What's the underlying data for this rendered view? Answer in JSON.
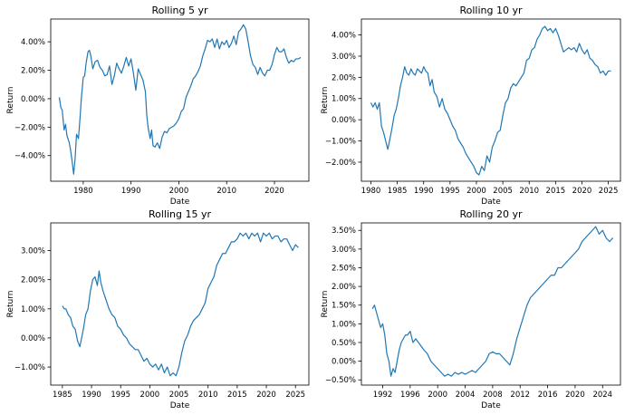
{
  "chart_data": [
    {
      "type": "line",
      "title": "Rolling 5 yr",
      "xlabel": "Date",
      "ylabel": "Return",
      "xlim": [
        1973.2,
        2027.2
      ],
      "ylim": [
        -5.8,
        5.6
      ],
      "xticks": [
        1980,
        1990,
        2000,
        2010,
        2020
      ],
      "yticks": [
        -4,
        -2,
        0,
        2,
        4
      ],
      "ytick_format": "percent_2dp",
      "color": "#1f77b4",
      "series": [
        {
          "x": [
            1975.0,
            1975.3,
            1975.6,
            1976.0,
            1976.3,
            1976.6,
            1977.0,
            1977.3,
            1977.6,
            1978.0,
            1978.3,
            1978.6,
            1979.0,
            1979.3,
            1979.6,
            1980.0,
            1980.3,
            1980.6,
            1981.0,
            1981.3,
            1981.6,
            1982.0,
            1982.5,
            1983.0,
            1983.5,
            1984.0,
            1984.5,
            1985.0,
            1985.5,
            1986.0,
            1986.5,
            1987.0,
            1987.5,
            1988.0,
            1988.5,
            1989.0,
            1989.5,
            1990.0,
            1990.5,
            1991.0,
            1991.5,
            1992.0,
            1992.5,
            1993.0,
            1993.3,
            1993.6,
            1994.0,
            1994.3,
            1994.6,
            1995.0,
            1995.5,
            1996.0,
            1996.5,
            1997.0,
            1997.5,
            1998.0,
            1998.5,
            1999.0,
            1999.5,
            2000.0,
            2000.5,
            2001.0,
            2001.5,
            2002.0,
            2002.5,
            2003.0,
            2003.5,
            2004.0,
            2004.5,
            2005.0,
            2005.5,
            2006.0,
            2006.5,
            2007.0,
            2007.5,
            2008.0,
            2008.5,
            2009.0,
            2009.5,
            2010.0,
            2010.5,
            2011.0,
            2011.5,
            2012.0,
            2012.5,
            2013.0,
            2013.5,
            2014.0,
            2014.5,
            2015.0,
            2015.5,
            2016.0,
            2016.5,
            2017.0,
            2017.5,
            2018.0,
            2018.5,
            2019.0,
            2019.5,
            2020.0,
            2020.5,
            2021.0,
            2021.5,
            2022.0,
            2022.5,
            2023.0,
            2023.5,
            2024.0,
            2024.5,
            2025.0,
            2025.5
          ],
          "y": [
            0.1,
            -0.6,
            -0.8,
            -2.2,
            -1.8,
            -2.6,
            -3.0,
            -3.5,
            -4.2,
            -5.3,
            -4.2,
            -2.5,
            -2.8,
            -1.5,
            0.0,
            1.5,
            1.6,
            2.5,
            3.3,
            3.4,
            3.0,
            2.1,
            2.6,
            2.7,
            2.2,
            2.0,
            1.6,
            1.7,
            2.3,
            1.0,
            1.6,
            2.5,
            2.1,
            1.8,
            2.3,
            2.9,
            2.3,
            2.8,
            1.8,
            0.6,
            2.1,
            1.7,
            1.3,
            0.5,
            -1.2,
            -2.1,
            -2.8,
            -2.2,
            -3.3,
            -3.4,
            -3.1,
            -3.5,
            -2.7,
            -2.3,
            -2.4,
            -2.1,
            -2.0,
            -1.9,
            -1.7,
            -1.4,
            -0.9,
            -0.7,
            0.1,
            0.5,
            0.9,
            1.4,
            1.6,
            1.9,
            2.3,
            3.0,
            3.5,
            4.1,
            4.0,
            4.2,
            3.6,
            4.2,
            3.5,
            4.0,
            3.8,
            4.1,
            3.6,
            3.9,
            4.4,
            3.8,
            4.7,
            4.9,
            5.2,
            4.9,
            4.0,
            3.0,
            2.4,
            2.2,
            1.7,
            2.2,
            1.8,
            1.6,
            2.0,
            2.0,
            2.4,
            3.1,
            3.6,
            3.3,
            3.3,
            3.5,
            2.9,
            2.5,
            2.7,
            2.6,
            2.8,
            2.8,
            2.9
          ]
        }
      ]
    },
    {
      "type": "line",
      "title": "Rolling 10 yr",
      "xlabel": "Date",
      "ylabel": "Return",
      "xlim": [
        1978.2,
        2027.3
      ],
      "ylim": [
        -2.9,
        4.75
      ],
      "xticks": [
        1980,
        1985,
        1990,
        1995,
        2000,
        2005,
        2010,
        2015,
        2020,
        2025
      ],
      "yticks": [
        -2,
        -1,
        0,
        1,
        2,
        3,
        4
      ],
      "ytick_format": "percent_2dp",
      "color": "#1f77b4",
      "series": [
        {
          "x": [
            1980.0,
            1980.4,
            1980.8,
            1981.2,
            1981.6,
            1982.0,
            1982.4,
            1982.8,
            1983.2,
            1983.6,
            1984.0,
            1984.4,
            1984.8,
            1985.2,
            1985.6,
            1986.0,
            1986.4,
            1986.8,
            1987.2,
            1987.6,
            1988.0,
            1988.4,
            1988.8,
            1989.2,
            1989.6,
            1990.0,
            1990.4,
            1990.8,
            1991.2,
            1991.6,
            1992.0,
            1992.5,
            1993.0,
            1993.5,
            1994.0,
            1994.5,
            1995.0,
            1995.5,
            1996.0,
            1996.5,
            1997.0,
            1997.5,
            1998.0,
            1998.5,
            1999.0,
            1999.5,
            2000.0,
            2000.5,
            2001.0,
            2001.5,
            2002.0,
            2002.5,
            2003.0,
            2003.5,
            2004.0,
            2004.5,
            2005.0,
            2005.5,
            2006.0,
            2006.5,
            2007.0,
            2007.5,
            2008.0,
            2008.5,
            2009.0,
            2009.5,
            2010.0,
            2010.5,
            2011.0,
            2011.5,
            2012.0,
            2012.5,
            2013.0,
            2013.5,
            2014.0,
            2014.5,
            2015.0,
            2015.5,
            2016.0,
            2016.5,
            2017.0,
            2017.5,
            2018.0,
            2018.5,
            2019.0,
            2019.5,
            2020.0,
            2020.5,
            2021.0,
            2021.5,
            2022.0,
            2022.5,
            2023.0,
            2023.5,
            2024.0,
            2024.5,
            2025.0,
            2025.5
          ],
          "y": [
            0.8,
            0.6,
            0.8,
            0.5,
            0.8,
            -0.3,
            -0.6,
            -1.0,
            -1.4,
            -0.9,
            -0.4,
            0.2,
            0.5,
            1.0,
            1.6,
            2.0,
            2.5,
            2.2,
            2.1,
            2.4,
            2.2,
            2.1,
            2.4,
            2.3,
            2.2,
            2.5,
            2.3,
            2.2,
            1.6,
            1.9,
            1.3,
            1.1,
            0.6,
            1.0,
            0.5,
            0.3,
            0.0,
            -0.3,
            -0.5,
            -0.9,
            -1.1,
            -1.3,
            -1.6,
            -1.8,
            -2.0,
            -2.2,
            -2.5,
            -2.6,
            -2.2,
            -2.4,
            -1.7,
            -2.0,
            -1.3,
            -1.0,
            -0.6,
            -0.5,
            0.2,
            0.8,
            1.0,
            1.5,
            1.7,
            1.6,
            1.8,
            2.0,
            2.2,
            2.8,
            2.9,
            3.3,
            3.4,
            3.8,
            4.0,
            4.3,
            4.4,
            4.2,
            4.3,
            4.1,
            4.3,
            4.0,
            3.6,
            3.2,
            3.3,
            3.4,
            3.3,
            3.4,
            3.2,
            3.6,
            3.3,
            3.1,
            3.3,
            2.9,
            2.8,
            2.6,
            2.5,
            2.2,
            2.3,
            2.1,
            2.3,
            2.3
          ]
        }
      ]
    },
    {
      "type": "line",
      "title": "Rolling 15 yr",
      "xlabel": "Date",
      "ylabel": "Return",
      "xlim": [
        1983.0,
        2027.3
      ],
      "ylim": [
        -1.62,
        3.95
      ],
      "xticks": [
        1985,
        1990,
        1995,
        2000,
        2005,
        2010,
        2015,
        2020,
        2025
      ],
      "yticks": [
        -1,
        0,
        1,
        2,
        3
      ],
      "ytick_format": "percent_2dp",
      "color": "#1f77b4",
      "series": [
        {
          "x": [
            1985.0,
            1985.3,
            1985.6,
            1986.0,
            1986.4,
            1986.8,
            1987.2,
            1987.6,
            1988.0,
            1988.3,
            1988.6,
            1989.0,
            1989.4,
            1989.8,
            1990.2,
            1990.6,
            1991.0,
            1991.3,
            1991.6,
            1992.0,
            1992.5,
            1993.0,
            1993.5,
            1994.0,
            1994.5,
            1995.0,
            1995.5,
            1996.0,
            1996.5,
            1997.0,
            1997.5,
            1998.0,
            1998.5,
            1999.0,
            1999.5,
            2000.0,
            2000.5,
            2001.0,
            2001.5,
            2002.0,
            2002.5,
            2003.0,
            2003.5,
            2004.0,
            2004.5,
            2005.0,
            2005.5,
            2006.0,
            2006.5,
            2007.0,
            2007.5,
            2008.0,
            2008.5,
            2009.0,
            2009.5,
            2010.0,
            2010.5,
            2011.0,
            2011.5,
            2012.0,
            2012.5,
            2013.0,
            2013.5,
            2014.0,
            2014.5,
            2015.0,
            2015.5,
            2016.0,
            2016.5,
            2017.0,
            2017.5,
            2018.0,
            2018.5,
            2019.0,
            2019.5,
            2020.0,
            2020.5,
            2021.0,
            2021.5,
            2022.0,
            2022.5,
            2023.0,
            2023.5,
            2024.0,
            2024.5,
            2025.0,
            2025.5
          ],
          "y": [
            1.1,
            1.0,
            1.0,
            0.8,
            0.7,
            0.4,
            0.3,
            -0.1,
            -0.3,
            0.0,
            0.3,
            0.8,
            1.0,
            1.6,
            2.0,
            2.1,
            1.8,
            2.3,
            1.9,
            1.6,
            1.3,
            1.0,
            0.8,
            0.7,
            0.4,
            0.3,
            0.1,
            0.0,
            -0.2,
            -0.3,
            -0.4,
            -0.4,
            -0.6,
            -0.8,
            -0.7,
            -0.9,
            -1.0,
            -0.9,
            -1.1,
            -0.9,
            -1.2,
            -1.0,
            -1.3,
            -1.2,
            -1.3,
            -1.0,
            -0.5,
            -0.1,
            0.1,
            0.4,
            0.6,
            0.7,
            0.8,
            1.0,
            1.2,
            1.7,
            1.9,
            2.1,
            2.5,
            2.7,
            2.9,
            2.9,
            3.1,
            3.3,
            3.3,
            3.4,
            3.6,
            3.5,
            3.6,
            3.4,
            3.6,
            3.5,
            3.6,
            3.3,
            3.6,
            3.5,
            3.6,
            3.4,
            3.5,
            3.5,
            3.3,
            3.4,
            3.4,
            3.2,
            3.0,
            3.2,
            3.1
          ]
        }
      ]
    },
    {
      "type": "line",
      "title": "Rolling 20 yr",
      "xlabel": "Date",
      "ylabel": "Return",
      "xlim": [
        1988.9,
        2026.6
      ],
      "ylim": [
        -0.64,
        3.7
      ],
      "xticks": [
        1992,
        1996,
        2000,
        2004,
        2008,
        2012,
        2016,
        2020,
        2024
      ],
      "yticks": [
        -0.5,
        0,
        0.5,
        1,
        1.5,
        2,
        2.5,
        3,
        3.5
      ],
      "ytick_format": "percent_2dp",
      "color": "#1f77b4",
      "series": [
        {
          "x": [
            1990.5,
            1990.8,
            1991.1,
            1991.4,
            1991.7,
            1992.0,
            1992.3,
            1992.6,
            1992.9,
            1993.2,
            1993.5,
            1993.8,
            1994.1,
            1994.4,
            1994.7,
            1995.0,
            1995.3,
            1995.6,
            1996.0,
            1996.4,
            1996.8,
            1997.2,
            1997.6,
            1998.0,
            1998.5,
            1999.0,
            1999.5,
            2000.0,
            2000.5,
            2001.0,
            2001.5,
            2002.0,
            2002.5,
            2003.0,
            2003.5,
            2004.0,
            2004.5,
            2005.0,
            2005.5,
            2006.0,
            2006.5,
            2007.0,
            2007.5,
            2008.0,
            2008.5,
            2009.0,
            2009.5,
            2010.0,
            2010.5,
            2011.0,
            2011.5,
            2012.0,
            2012.5,
            2013.0,
            2013.5,
            2014.0,
            2014.5,
            2015.0,
            2015.5,
            2016.0,
            2016.5,
            2017.0,
            2017.5,
            2018.0,
            2018.5,
            2019.0,
            2019.5,
            2020.0,
            2020.5,
            2021.0,
            2021.5,
            2022.0,
            2022.5,
            2023.0,
            2023.5,
            2024.0,
            2024.5,
            2025.0,
            2025.5
          ],
          "y": [
            1.4,
            1.5,
            1.3,
            1.1,
            0.9,
            1.0,
            0.7,
            0.2,
            0.0,
            -0.4,
            -0.2,
            -0.3,
            0.0,
            0.3,
            0.5,
            0.6,
            0.7,
            0.7,
            0.8,
            0.5,
            0.6,
            0.5,
            0.4,
            0.3,
            0.2,
            0.0,
            -0.1,
            -0.2,
            -0.3,
            -0.4,
            -0.35,
            -0.4,
            -0.3,
            -0.35,
            -0.3,
            -0.35,
            -0.3,
            -0.25,
            -0.3,
            -0.2,
            -0.1,
            0.0,
            0.2,
            0.25,
            0.2,
            0.2,
            0.1,
            0.0,
            -0.1,
            0.2,
            0.6,
            0.9,
            1.2,
            1.5,
            1.7,
            1.8,
            1.9,
            2.0,
            2.1,
            2.2,
            2.3,
            2.3,
            2.5,
            2.5,
            2.6,
            2.7,
            2.8,
            2.9,
            3.0,
            3.2,
            3.3,
            3.4,
            3.5,
            3.6,
            3.4,
            3.5,
            3.3,
            3.2,
            3.3
          ]
        }
      ]
    }
  ]
}
